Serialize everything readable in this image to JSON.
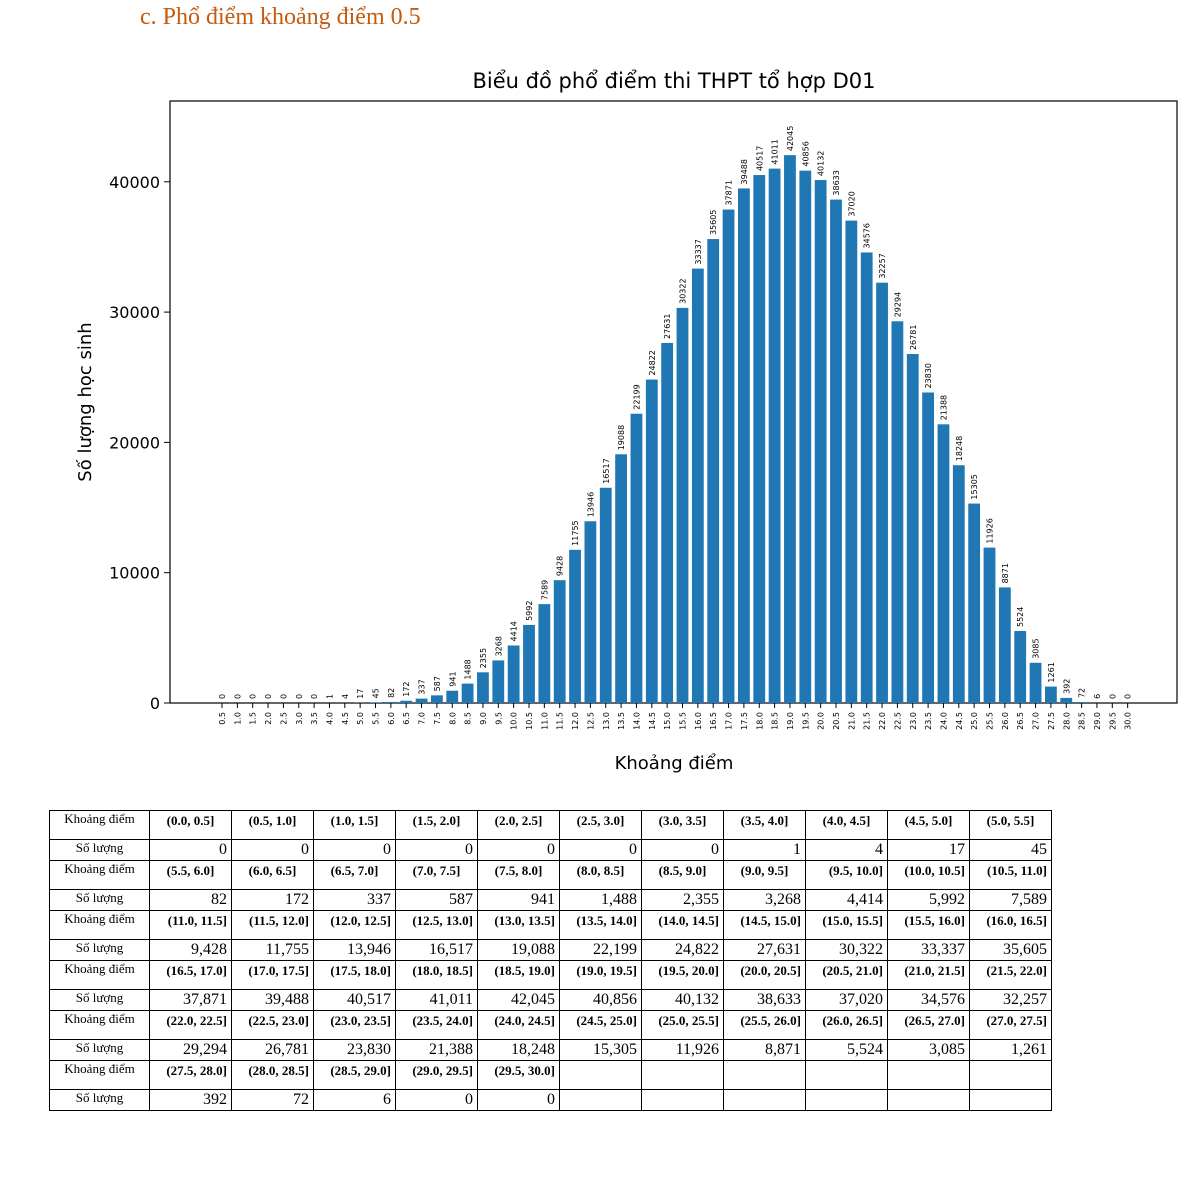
{
  "heading": "c.   Phổ điểm khoảng điểm 0.5",
  "colors": {
    "bar": "#1f77b4",
    "heading": "#c55a11"
  },
  "chart_data": {
    "type": "bar",
    "title": "Biểu đồ phổ điểm thi THPT tổ hợp D01",
    "xlabel": "Khoảng điểm",
    "ylabel": "Số lượng học sinh",
    "ylim": [
      0,
      46200
    ],
    "yticks": [
      "0",
      "10000",
      "20000",
      "30000",
      "40000"
    ],
    "grid": false,
    "categories": [
      "0.5",
      "1.0",
      "1.5",
      "2.0",
      "2.5",
      "3.0",
      "3.5",
      "4.0",
      "4.5",
      "5.0",
      "5.5",
      "6.0",
      "6.5",
      "7.0",
      "7.5",
      "8.0",
      "8.5",
      "9.0",
      "9.5",
      "10.0",
      "10.5",
      "11.0",
      "11.5",
      "12.0",
      "12.5",
      "13.0",
      "13.5",
      "14.0",
      "14.5",
      "15.0",
      "15.5",
      "16.0",
      "16.5",
      "17.0",
      "17.5",
      "18.0",
      "18.5",
      "19.0",
      "19.5",
      "20.0",
      "20.5",
      "21.0",
      "21.5",
      "22.0",
      "22.5",
      "23.0",
      "23.5",
      "24.0",
      "24.5",
      "25.0",
      "25.5",
      "26.0",
      "26.5",
      "27.0",
      "27.5",
      "28.0",
      "28.5",
      "29.0",
      "29.5",
      "30.0"
    ],
    "values": [
      0,
      0,
      0,
      0,
      0,
      0,
      0,
      1,
      4,
      17,
      45,
      82,
      172,
      337,
      587,
      941,
      1488,
      2355,
      3268,
      4414,
      5992,
      7589,
      9428,
      11755,
      13946,
      16517,
      19088,
      22199,
      24822,
      27631,
      30322,
      33337,
      35605,
      37871,
      39488,
      40517,
      41011,
      42045,
      40856,
      40132,
      38633,
      37020,
      34576,
      32257,
      29294,
      26781,
      23830,
      21388,
      18248,
      15305,
      11926,
      8871,
      5524,
      3085,
      1261,
      392,
      72,
      6,
      0,
      0
    ]
  },
  "table": {
    "row_header_interval": "Khoảng điểm",
    "row_header_count": "Số lượng",
    "groups": [
      {
        "intervals": [
          "(0.0, 0.5]",
          "(0.5, 1.0]",
          "(1.0, 1.5]",
          "(1.5, 2.0]",
          "(2.0, 2.5]",
          "(2.5, 3.0]",
          "(3.0, 3.5]",
          "(3.5, 4.0]",
          "(4.0, 4.5]",
          "(4.5, 5.0]",
          "(5.0, 5.5]"
        ],
        "counts": [
          "0",
          "0",
          "0",
          "0",
          "0",
          "0",
          "0",
          "1",
          "4",
          "17",
          "45"
        ]
      },
      {
        "intervals": [
          "(5.5, 6.0]",
          "(6.0, 6.5]",
          "(6.5, 7.0]",
          "(7.0, 7.5]",
          "(7.5, 8.0]",
          "(8.0, 8.5]",
          "(8.5, 9.0]",
          "(9.0, 9.5]",
          "(9.5, 10.0]",
          "(10.0, 10.5]",
          "(10.5, 11.0]"
        ],
        "counts": [
          "82",
          "172",
          "337",
          "587",
          "941",
          "1,488",
          "2,355",
          "3,268",
          "4,414",
          "5,992",
          "7,589"
        ]
      },
      {
        "intervals": [
          "(11.0, 11.5]",
          "(11.5, 12.0]",
          "(12.0, 12.5]",
          "(12.5, 13.0]",
          "(13.0, 13.5]",
          "(13.5, 14.0]",
          "(14.0, 14.5]",
          "(14.5, 15.0]",
          "(15.0, 15.5]",
          "(15.5, 16.0]",
          "(16.0, 16.5]"
        ],
        "counts": [
          "9,428",
          "11,755",
          "13,946",
          "16,517",
          "19,088",
          "22,199",
          "24,822",
          "27,631",
          "30,322",
          "33,337",
          "35,605"
        ]
      },
      {
        "intervals": [
          "(16.5, 17.0]",
          "(17.0, 17.5]",
          "(17.5, 18.0]",
          "(18.0, 18.5]",
          "(18.5, 19.0]",
          "(19.0, 19.5]",
          "(19.5, 20.0]",
          "(20.0, 20.5]",
          "(20.5, 21.0]",
          "(21.0, 21.5]",
          "(21.5, 22.0]"
        ],
        "counts": [
          "37,871",
          "39,488",
          "40,517",
          "41,011",
          "42,045",
          "40,856",
          "40,132",
          "38,633",
          "37,020",
          "34,576",
          "32,257"
        ]
      },
      {
        "intervals": [
          "(22.0, 22.5]",
          "(22.5, 23.0]",
          "(23.0, 23.5]",
          "(23.5, 24.0]",
          "(24.0, 24.5]",
          "(24.5, 25.0]",
          "(25.0, 25.5]",
          "(25.5, 26.0]",
          "(26.0, 26.5]",
          "(26.5, 27.0]",
          "(27.0, 27.5]"
        ],
        "counts": [
          "29,294",
          "26,781",
          "23,830",
          "21,388",
          "18,248",
          "15,305",
          "11,926",
          "8,871",
          "5,524",
          "3,085",
          "1,261"
        ]
      },
      {
        "intervals": [
          "(27.5, 28.0]",
          "(28.0, 28.5]",
          "(28.5, 29.0]",
          "(29.0, 29.5]",
          "(29.5, 30.0]",
          "",
          "",
          "",
          "",
          "",
          ""
        ],
        "counts": [
          "392",
          "72",
          "6",
          "0",
          "0",
          "",
          "",
          "",
          "",
          "",
          ""
        ]
      }
    ]
  }
}
